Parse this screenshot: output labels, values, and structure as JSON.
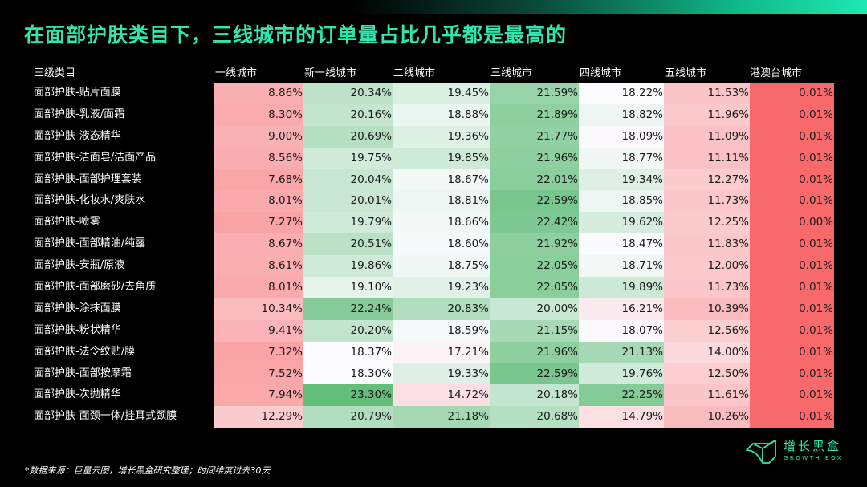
{
  "title": "在面部护肤类目下，三线城市的订单量占比几乎都是最高的",
  "header": {
    "category_label": "三级类目",
    "columns": [
      "一线城市",
      "新一线城市",
      "二线城市",
      "三线城市",
      "四线城市",
      "五线城市",
      "港澳台城市"
    ]
  },
  "colors": {
    "title": "#2ee6ae",
    "min": "#f8696b",
    "mid": "#fcfcff",
    "max": "#63be7b"
  },
  "footnote": "*数据来源：巨量云图，增长黑盒研究整理；时间维度过去30天",
  "logo": {
    "name": "增长黑盒",
    "sub": "GROWTH BOX"
  },
  "chart_data": {
    "type": "heatmap",
    "title": "在面部护肤类目下，三线城市的订单量占比几乎都是最高的",
    "xlabel": "城市等级",
    "ylabel": "三级类目",
    "columns": [
      "一线城市",
      "新一线城市",
      "二线城市",
      "三线城市",
      "四线城市",
      "五线城市",
      "港澳台城市"
    ],
    "rows": [
      "面部护肤-贴片面膜",
      "面部护肤-乳液/面霜",
      "面部护肤-液态精华",
      "面部护肤-洁面皂/洁面产品",
      "面部护肤-面部护理套装",
      "面部护肤-化妆水/爽肤水",
      "面部护肤-喷雾",
      "面部护肤-面部精油/纯露",
      "面部护肤-安瓶/原液",
      "面部护肤-面部磨砂/去角质",
      "面部护肤-涂抹面膜",
      "面部护肤-粉状精华",
      "面部护肤-法令纹贴/膜",
      "面部护肤-面部按摩霜",
      "面部护肤-次抛精华",
      "面部护肤-面颈一体/挂耳式颈膜"
    ],
    "values": [
      [
        "8.86%",
        "20.34%",
        "19.45%",
        "21.59%",
        "18.22%",
        "11.53%",
        "0.01%"
      ],
      [
        "8.30%",
        "20.16%",
        "18.88%",
        "21.89%",
        "18.82%",
        "11.96%",
        "0.01%"
      ],
      [
        "9.00%",
        "20.69%",
        "19.36%",
        "21.77%",
        "18.09%",
        "11.09%",
        "0.01%"
      ],
      [
        "8.56%",
        "19.75%",
        "19.85%",
        "21.96%",
        "18.77%",
        "11.11%",
        "0.01%"
      ],
      [
        "7.68%",
        "20.04%",
        "18.67%",
        "22.01%",
        "19.34%",
        "12.27%",
        "0.01%"
      ],
      [
        "8.01%",
        "20.01%",
        "18.81%",
        "22.59%",
        "18.85%",
        "11.73%",
        "0.01%"
      ],
      [
        "7.27%",
        "19.79%",
        "18.66%",
        "22.42%",
        "19.62%",
        "12.25%",
        "0.00%"
      ],
      [
        "8.67%",
        "20.51%",
        "18.60%",
        "21.92%",
        "18.47%",
        "11.83%",
        "0.01%"
      ],
      [
        "8.61%",
        "19.86%",
        "18.75%",
        "22.05%",
        "18.71%",
        "12.00%",
        "0.01%"
      ],
      [
        "8.01%",
        "19.10%",
        "19.23%",
        "22.05%",
        "19.89%",
        "11.73%",
        "0.01%"
      ],
      [
        "10.34%",
        "22.24%",
        "20.83%",
        "20.00%",
        "16.21%",
        "10.39%",
        "0.01%"
      ],
      [
        "9.41%",
        "20.20%",
        "18.59%",
        "21.15%",
        "18.07%",
        "12.56%",
        "0.01%"
      ],
      [
        "7.32%",
        "18.37%",
        "17.21%",
        "21.96%",
        "21.13%",
        "14.00%",
        "0.01%"
      ],
      [
        "7.52%",
        "18.30%",
        "19.33%",
        "22.59%",
        "19.76%",
        "12.50%",
        "0.01%"
      ],
      [
        "7.94%",
        "23.30%",
        "14.72%",
        "20.18%",
        "22.25%",
        "11.61%",
        "0.01%"
      ],
      [
        "12.29%",
        "20.79%",
        "21.18%",
        "20.68%",
        "14.79%",
        "10.26%",
        "0.01%"
      ]
    ],
    "color_scale": {
      "min": "#f8696b",
      "mid": "#fcfcff",
      "max": "#63be7b"
    }
  }
}
